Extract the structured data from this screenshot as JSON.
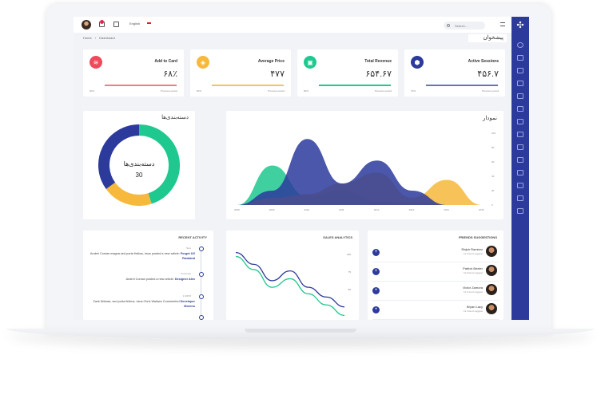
{
  "topbar": {
    "language": "English",
    "search_placeholder": "Search..."
  },
  "breadcrumb": {
    "home": "Home",
    "current": "Dashboard"
  },
  "page_title": "پیشخوان",
  "stats": [
    {
      "label": "Active Sessions",
      "value": "۴۵۶.۷",
      "foot_left": "70%",
      "foot_right": "Previous period",
      "color": "#2c3a9c",
      "icon": "cube-icon"
    },
    {
      "label": "Total Revenue",
      "value": "۶۵۴.۶۷",
      "foot_left": "80%",
      "foot_right": "Previous period",
      "color": "#1fc88f",
      "icon": "bag-icon"
    },
    {
      "label": "Average Price",
      "value": "۴۷۷",
      "foot_left": "60%",
      "foot_right": "Previous period",
      "color": "#f6b93b",
      "icon": "tag-icon"
    },
    {
      "label": "Add to Card",
      "value": "۶۸٪",
      "foot_left": "60%",
      "foot_right": "Previous period",
      "color": "#ef4a5c",
      "icon": "layers-icon"
    }
  ],
  "categories": {
    "title": "دسته‌بندی‌ها",
    "center_label": "دسته‌بندی‌ها",
    "center_value": "30"
  },
  "area_chart": {
    "title": "نمودار"
  },
  "recent_activity": {
    "title": "RECENT ACTIVITY",
    "items": [
      {
        "time": "Now",
        "text": "Andrei Coman magna sed porta finibus, risus posted a new article:",
        "link": "Forget UX Rowland"
      },
      {
        "time": "Yesterday",
        "text": "Andrei Coman posted a new article:",
        "link": "Designer Alex"
      },
      {
        "time": "2:30PM",
        "text": "Zack Wetass, sed porta finibus, risus Chris Wallace Commented",
        "link": "Developer Moreno"
      },
      {
        "time": "",
        "text": "",
        "link": ""
      }
    ]
  },
  "sales_analytics": {
    "title": "SALES ANALYTICS",
    "ticks": [
      "100",
      "75",
      "50"
    ]
  },
  "friends": {
    "title": "FRIENDS SUGGESTIONS",
    "items": [
      {
        "name": "Ralph Ramirez",
        "sub": "12 Friend suggest"
      },
      {
        "name": "Patrick Beeler",
        "sub": "12 Friend suggest"
      },
      {
        "name": "Victor Zamora",
        "sub": "12 Friend suggest"
      },
      {
        "name": "Bryan Lacy",
        "sub": "12 Friend suggest"
      }
    ]
  },
  "chart_data": [
    {
      "type": "pie",
      "title": "دسته‌بندی‌ها",
      "series": [
        {
          "values": [
            45,
            20,
            35
          ]
        }
      ],
      "colors": [
        "#1fc88f",
        "#f6b93b",
        "#2c3a9c"
      ]
    },
    {
      "type": "area",
      "title": "نمودار",
      "x": [
        "2008",
        "2009",
        "2010",
        "2011",
        "2012",
        "2013",
        "2014",
        "2015"
      ],
      "ytick_labels": [
        "100",
        "80",
        "60",
        "40",
        "20",
        "0"
      ],
      "series": [
        {
          "color": "#1fc88f",
          "values": [
            0,
            55,
            12,
            20,
            5,
            3,
            0,
            0
          ]
        },
        {
          "color": "#f6b93b",
          "values": [
            0,
            10,
            15,
            30,
            45,
            10,
            35,
            0
          ]
        },
        {
          "color": "#2c3a9c",
          "values": [
            0,
            20,
            92,
            30,
            62,
            20,
            0,
            0
          ]
        }
      ]
    },
    {
      "type": "line",
      "title": "SALES ANALYTICS",
      "series": [
        {
          "color": "#2c3a9c",
          "values": [
            98,
            80,
            55,
            70,
            45,
            30,
            15
          ]
        },
        {
          "color": "#1fc88f",
          "values": [
            92,
            72,
            45,
            58,
            35,
            18,
            2
          ]
        }
      ]
    }
  ]
}
